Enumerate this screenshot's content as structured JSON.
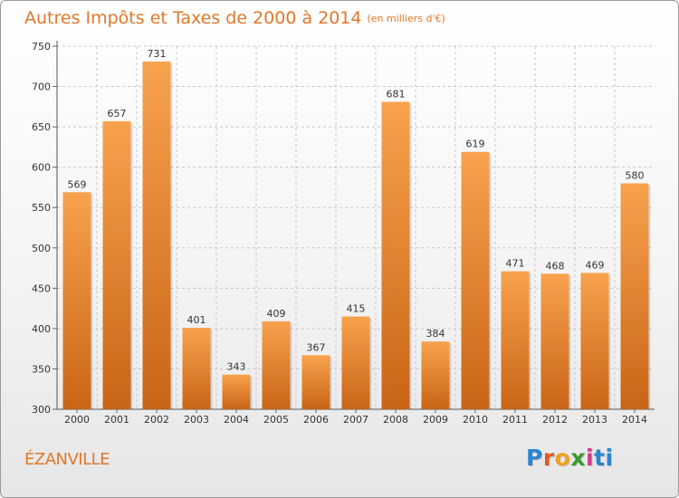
{
  "title": "Autres Impôts et Taxes de 2000 à 2014",
  "unit": "(en milliers d'€)",
  "location": "ÉZANVILLE",
  "logo": {
    "letters": [
      "P",
      "r",
      "o",
      "x",
      "i",
      "t",
      "i"
    ]
  },
  "colors": {
    "accent": "#e0782a",
    "bar_light": "#f8a24e",
    "bar_dark": "#c96516",
    "grid": "#c8c8c8"
  },
  "chart_data": {
    "type": "bar",
    "categories": [
      "2000",
      "2001",
      "2002",
      "2003",
      "2004",
      "2005",
      "2006",
      "2007",
      "2008",
      "2009",
      "2010",
      "2011",
      "2012",
      "2013",
      "2014"
    ],
    "values": [
      569,
      657,
      731,
      401,
      343,
      409,
      367,
      415,
      681,
      384,
      619,
      471,
      468,
      469,
      580
    ],
    "ylim": [
      300,
      750
    ],
    "yticks": [
      300,
      350,
      400,
      450,
      500,
      550,
      600,
      650,
      700,
      750
    ],
    "grid": true,
    "data_labels": true
  }
}
